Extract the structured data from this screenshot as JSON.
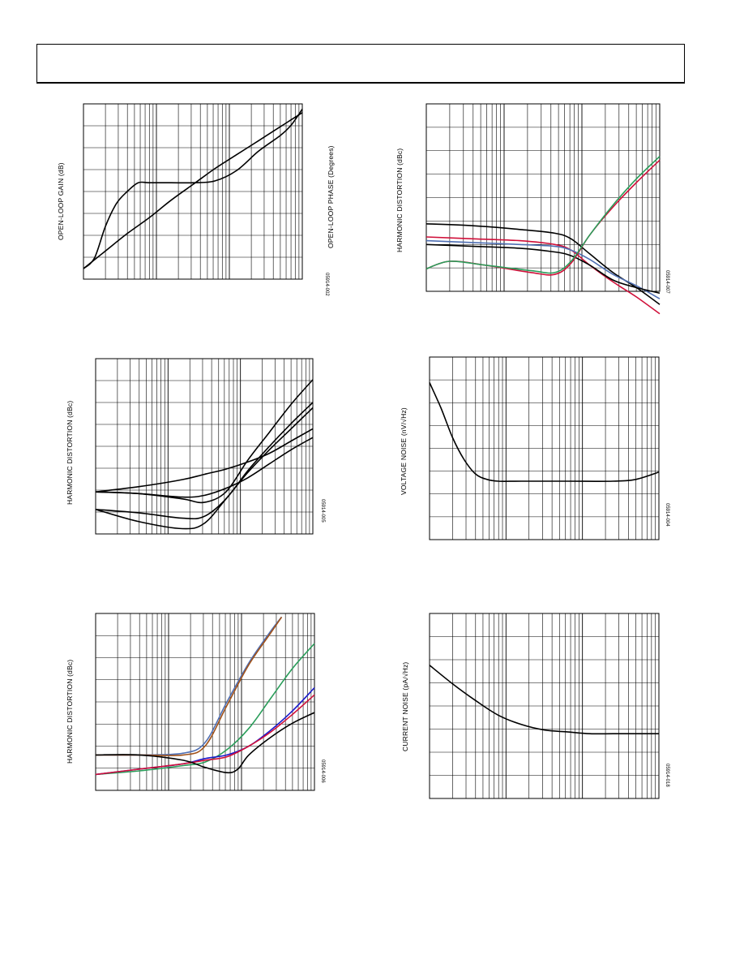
{
  "page": {
    "header": ""
  },
  "charts": [
    {
      "id": "open-loop-gain-phase",
      "ylabel": "OPEN-LOOP GAIN (dB)",
      "ylabel2": "OPEN-LOOP PHASE (Degrees)",
      "fig_id": "05914-002"
    },
    {
      "id": "harmonic-distortion-top-right",
      "ylabel": "HARMONIC DISTORTION (dBc)",
      "fig_id": "05914-007"
    },
    {
      "id": "harmonic-distortion-mid-left",
      "ylabel": "HARMONIC DISTORTION (dBc)",
      "fig_id": "05914-005"
    },
    {
      "id": "voltage-noise",
      "ylabel": "VOLTAGE NOISE (nV/√Hz)",
      "fig_id": "05914-004"
    },
    {
      "id": "harmonic-distortion-bottom-left",
      "ylabel": "HARMONIC DISTORTION (dBc)",
      "fig_id": "05914-006"
    },
    {
      "id": "current-noise",
      "ylabel": "CURRENT NOISE (pA/√Hz)",
      "fig_id": "05914-018"
    }
  ],
  "chart_data": [
    {
      "type": "line",
      "x_scale": "log",
      "grid": true,
      "legend": "none",
      "series": [
        {
          "color": "#000000",
          "x": [
            0.0,
            0.05,
            0.1,
            0.15,
            0.2,
            0.25,
            0.3,
            0.4,
            0.5,
            0.6,
            0.7,
            0.8,
            0.9,
            0.95,
            1.0
          ],
          "y": [
            0.06,
            0.12,
            0.3,
            0.43,
            0.5,
            0.55,
            0.55,
            0.55,
            0.55,
            0.56,
            0.62,
            0.73,
            0.82,
            0.88,
            0.97
          ]
        },
        {
          "color": "#000000",
          "x": [
            0.0,
            0.1,
            0.2,
            0.3,
            0.4,
            0.5,
            0.6,
            0.7,
            0.8,
            0.9,
            0.95,
            1.0
          ],
          "y": [
            0.06,
            0.16,
            0.26,
            0.35,
            0.45,
            0.54,
            0.63,
            0.71,
            0.79,
            0.87,
            0.91,
            0.95
          ]
        }
      ]
    },
    {
      "type": "line",
      "x_scale": "log",
      "grid": true,
      "legend": "none",
      "series": [
        {
          "color": "#000000",
          "x": [
            0.0,
            0.2,
            0.4,
            0.55,
            0.62,
            0.7,
            0.8,
            0.9,
            1.0
          ],
          "y": [
            0.36,
            0.35,
            0.33,
            0.31,
            0.28,
            0.2,
            0.1,
            0.02,
            -0.07
          ]
        },
        {
          "color": "#d0103a",
          "x": [
            0.0,
            0.2,
            0.4,
            0.55,
            0.62,
            0.7,
            0.8,
            0.9,
            1.0
          ],
          "y": [
            0.29,
            0.28,
            0.27,
            0.25,
            0.22,
            0.14,
            0.05,
            -0.03,
            -0.12
          ]
        },
        {
          "color": "#4f6fb3",
          "x": [
            0.0,
            0.2,
            0.4,
            0.55,
            0.62,
            0.7,
            0.8,
            0.9,
            1.0
          ],
          "y": [
            0.27,
            0.26,
            0.25,
            0.24,
            0.22,
            0.17,
            0.09,
            0.03,
            -0.04
          ]
        },
        {
          "color": "#000000",
          "x": [
            0.0,
            0.2,
            0.4,
            0.55,
            0.62,
            0.7,
            0.8,
            0.9,
            1.0
          ],
          "y": [
            0.25,
            0.24,
            0.23,
            0.21,
            0.19,
            0.14,
            0.06,
            0.02,
            -0.01
          ]
        },
        {
          "color": "#d0103a",
          "x": [
            0.0,
            0.1,
            0.25,
            0.45,
            0.55,
            0.62,
            0.7,
            0.8,
            0.9,
            1.0
          ],
          "y": [
            0.12,
            0.16,
            0.14,
            0.1,
            0.09,
            0.15,
            0.3,
            0.45,
            0.58,
            0.7
          ]
        },
        {
          "color": "#2a9d5a",
          "x": [
            0.0,
            0.1,
            0.25,
            0.45,
            0.55,
            0.62,
            0.7,
            0.8,
            0.9,
            1.0
          ],
          "y": [
            0.12,
            0.16,
            0.14,
            0.11,
            0.1,
            0.16,
            0.3,
            0.46,
            0.6,
            0.72
          ]
        }
      ]
    },
    {
      "type": "line",
      "x_scale": "log",
      "grid": true,
      "legend": "none",
      "series": [
        {
          "color": "#000000",
          "x": [
            0.0,
            0.2,
            0.4,
            0.5,
            0.6,
            0.7,
            0.8,
            0.9,
            1.0
          ],
          "y": [
            0.24,
            0.27,
            0.31,
            0.34,
            0.37,
            0.41,
            0.46,
            0.53,
            0.6
          ]
        },
        {
          "color": "#000000",
          "x": [
            0.0,
            0.2,
            0.4,
            0.5,
            0.6,
            0.7,
            0.8,
            0.9,
            1.0
          ],
          "y": [
            0.24,
            0.23,
            0.2,
            0.18,
            0.24,
            0.42,
            0.58,
            0.74,
            0.88
          ]
        },
        {
          "color": "#000000",
          "x": [
            0.0,
            0.2,
            0.4,
            0.5,
            0.6,
            0.7,
            0.8,
            0.9,
            1.0
          ],
          "y": [
            0.14,
            0.12,
            0.09,
            0.1,
            0.2,
            0.36,
            0.5,
            0.63,
            0.75
          ]
        },
        {
          "color": "#000000",
          "x": [
            0.0,
            0.2,
            0.4,
            0.5,
            0.6,
            0.7,
            0.8,
            0.9,
            1.0
          ],
          "y": [
            0.14,
            0.07,
            0.03,
            0.06,
            0.2,
            0.35,
            0.48,
            0.6,
            0.72
          ]
        },
        {
          "color": "#000000",
          "x": [
            0.0,
            0.2,
            0.4,
            0.5,
            0.6,
            0.7,
            0.8,
            0.9,
            1.0
          ],
          "y": [
            0.24,
            0.23,
            0.21,
            0.22,
            0.26,
            0.32,
            0.4,
            0.48,
            0.55
          ]
        }
      ]
    },
    {
      "type": "line",
      "x_scale": "log",
      "grid": true,
      "legend": "none",
      "series": [
        {
          "color": "#000000",
          "x": [
            0.0,
            0.05,
            0.1,
            0.15,
            0.2,
            0.25,
            0.3,
            0.4,
            0.6,
            0.8,
            0.9,
            1.0
          ],
          "y": [
            0.86,
            0.72,
            0.56,
            0.44,
            0.36,
            0.33,
            0.32,
            0.32,
            0.32,
            0.32,
            0.33,
            0.37
          ]
        }
      ]
    },
    {
      "type": "line",
      "x_scale": "log",
      "grid": true,
      "legend": "none",
      "series": [
        {
          "color": "#4f6fb3",
          "x": [
            0.0,
            0.2,
            0.4,
            0.5,
            0.6,
            0.7,
            0.8,
            0.85
          ],
          "y": [
            0.2,
            0.2,
            0.21,
            0.27,
            0.5,
            0.72,
            0.9,
            0.98
          ]
        },
        {
          "color": "#a0521a",
          "x": [
            0.0,
            0.2,
            0.4,
            0.5,
            0.6,
            0.7,
            0.8,
            0.85
          ],
          "y": [
            0.2,
            0.2,
            0.2,
            0.25,
            0.48,
            0.71,
            0.89,
            0.98
          ]
        },
        {
          "color": "#2a9d5a",
          "x": [
            0.0,
            0.2,
            0.4,
            0.5,
            0.6,
            0.7,
            0.8,
            0.9,
            1.0
          ],
          "y": [
            0.09,
            0.11,
            0.14,
            0.16,
            0.23,
            0.35,
            0.52,
            0.69,
            0.83
          ]
        },
        {
          "color": "#1a1acc",
          "x": [
            0.0,
            0.2,
            0.4,
            0.5,
            0.6,
            0.7,
            0.8,
            0.9,
            1.0
          ],
          "y": [
            0.09,
            0.12,
            0.15,
            0.18,
            0.2,
            0.25,
            0.34,
            0.45,
            0.58
          ]
        },
        {
          "color": "#d0103a",
          "x": [
            0.0,
            0.2,
            0.4,
            0.5,
            0.6,
            0.7,
            0.8,
            0.9,
            1.0
          ],
          "y": [
            0.09,
            0.12,
            0.15,
            0.17,
            0.19,
            0.25,
            0.33,
            0.43,
            0.54
          ]
        },
        {
          "color": "#000000",
          "x": [
            0.0,
            0.2,
            0.4,
            0.5,
            0.6,
            0.65,
            0.7,
            0.8,
            0.9,
            1.0
          ],
          "y": [
            0.2,
            0.2,
            0.17,
            0.13,
            0.1,
            0.12,
            0.2,
            0.3,
            0.38,
            0.44
          ]
        }
      ]
    },
    {
      "type": "line",
      "x_scale": "log",
      "grid": true,
      "legend": "none",
      "series": [
        {
          "color": "#000000",
          "x": [
            0.0,
            0.1,
            0.2,
            0.3,
            0.4,
            0.5,
            0.6,
            0.7,
            0.8,
            0.9,
            1.0
          ],
          "y": [
            0.72,
            0.62,
            0.53,
            0.45,
            0.4,
            0.37,
            0.36,
            0.35,
            0.35,
            0.35,
            0.35
          ]
        }
      ]
    }
  ]
}
